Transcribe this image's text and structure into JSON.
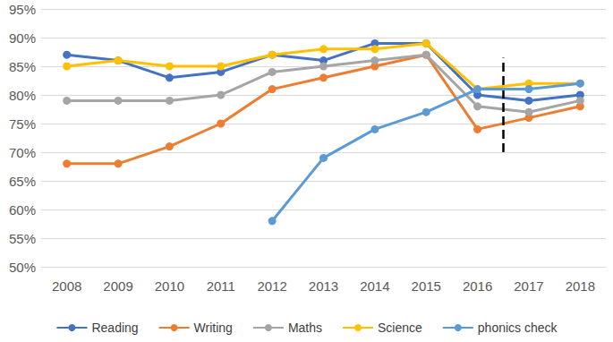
{
  "chart_data": {
    "type": "line",
    "x": [
      2008,
      2009,
      2010,
      2011,
      2012,
      2013,
      2014,
      2015,
      2016,
      2017,
      2018
    ],
    "xlim": [
      2007.5,
      2018.5
    ],
    "xticks": [
      2008,
      2009,
      2010,
      2011,
      2012,
      2013,
      2014,
      2015,
      2016,
      2017,
      2018
    ],
    "ylim": [
      50,
      95
    ],
    "yticks": [
      {
        "value": 50,
        "label": "50%"
      },
      {
        "value": 55,
        "label": "55%"
      },
      {
        "value": 60,
        "label": "60%"
      },
      {
        "value": 65,
        "label": "65%"
      },
      {
        "value": 70,
        "label": "70%"
      },
      {
        "value": 75,
        "label": "75%"
      },
      {
        "value": 80,
        "label": "80%"
      },
      {
        "value": 85,
        "label": "85%"
      },
      {
        "value": 90,
        "label": "90%"
      },
      {
        "value": 95,
        "label": "95%"
      }
    ],
    "grid": true,
    "legend": "bottom",
    "marker": "circle",
    "series": [
      {
        "name": "Reading",
        "color": "#4472c4",
        "values": [
          87,
          86,
          83,
          84,
          87,
          86,
          89,
          89,
          80,
          79,
          80
        ]
      },
      {
        "name": "Writing",
        "color": "#ed7d31",
        "values": [
          68,
          68,
          71,
          75,
          81,
          83,
          85,
          87,
          74,
          76,
          78
        ]
      },
      {
        "name": "Maths",
        "color": "#a5a5a5",
        "values": [
          79,
          79,
          79,
          80,
          84,
          85,
          86,
          87,
          78,
          77,
          79
        ]
      },
      {
        "name": "Science",
        "color": "#ffc000",
        "values": [
          85,
          86,
          85,
          85,
          87,
          88,
          88,
          89,
          81,
          82,
          82
        ]
      },
      {
        "name": "phonics check",
        "color": "#5b9bd5",
        "values": [
          null,
          null,
          null,
          null,
          58,
          69,
          74,
          77,
          81,
          81,
          82
        ]
      }
    ],
    "divider": {
      "x": 2016.5,
      "y_range": [
        70,
        86.5
      ],
      "color": "#000000",
      "line_style": "dashed"
    }
  }
}
